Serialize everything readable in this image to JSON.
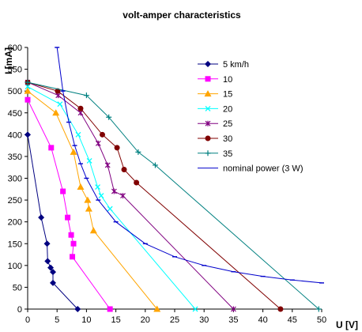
{
  "chart_data": {
    "type": "scatter",
    "title": "volt-amper characteristics",
    "xlabel": "U [V]",
    "ylabel": "I [mA]",
    "xlim": [
      0,
      50
    ],
    "ylim": [
      0,
      600
    ],
    "x_ticks": [
      0,
      5,
      10,
      15,
      20,
      25,
      30,
      35,
      40,
      45,
      50
    ],
    "y_ticks": [
      0,
      50,
      100,
      150,
      200,
      250,
      300,
      350,
      400,
      450,
      500,
      550,
      600
    ],
    "grid": "none",
    "legend_placement": "right",
    "series": [
      {
        "name": "5 km/h",
        "color": "#000080",
        "marker": "diamond",
        "x": [
          0,
          2.3,
          3.3,
          3.4,
          3.9,
          4.3,
          4.3,
          8.5
        ],
        "y": [
          400,
          210,
          150,
          110,
          95,
          85,
          60,
          0
        ]
      },
      {
        "name": "10",
        "color": "#ff00ff",
        "marker": "square",
        "x": [
          0,
          4,
          6,
          6.8,
          7.4,
          7.8,
          7.6,
          14
        ],
        "y": [
          480,
          370,
          270,
          210,
          170,
          150,
          120,
          0
        ]
      },
      {
        "name": "15",
        "color": "#ffa500",
        "marker": "triangle",
        "x": [
          0,
          4.8,
          7.8,
          9,
          10.2,
          10.4,
          11.2,
          22
        ],
        "y": [
          500,
          450,
          360,
          280,
          250,
          230,
          180,
          0
        ]
      },
      {
        "name": "20",
        "color": "#00ffff",
        "marker": "x",
        "x": [
          0,
          5.5,
          8.6,
          10.5,
          11.9,
          12.5,
          14,
          28.5
        ],
        "y": [
          510,
          470,
          400,
          340,
          280,
          260,
          230,
          0
        ]
      },
      {
        "name": "25",
        "color": "#800080",
        "marker": "star",
        "x": [
          0,
          5.2,
          9,
          12,
          13.6,
          14.7,
          16.2,
          35
        ],
        "y": [
          520,
          490,
          450,
          380,
          330,
          270,
          260,
          0
        ]
      },
      {
        "name": "30",
        "color": "#800000",
        "marker": "circle",
        "x": [
          0,
          5.1,
          9,
          12.7,
          15.2,
          16.4,
          18.5,
          43
        ],
        "y": [
          520,
          500,
          460,
          400,
          370,
          320,
          290,
          0
        ]
      },
      {
        "name": "35",
        "color": "#008080",
        "marker": "plus",
        "x": [
          0,
          10,
          13.8,
          18.8,
          21.7,
          49.5
        ],
        "y": [
          520,
          490,
          440,
          360,
          330,
          0
        ]
      },
      {
        "name": "nominal power (3 W)",
        "color": "#0000cc",
        "marker": "dash",
        "x": [
          5,
          6,
          7,
          8,
          9,
          10,
          12,
          15,
          20,
          25,
          30,
          35,
          40,
          45,
          50
        ],
        "y": [
          600,
          500,
          428.6,
          375,
          333.3,
          300,
          250,
          200,
          150,
          120,
          100,
          85.7,
          75,
          66.7,
          60
        ]
      }
    ]
  }
}
